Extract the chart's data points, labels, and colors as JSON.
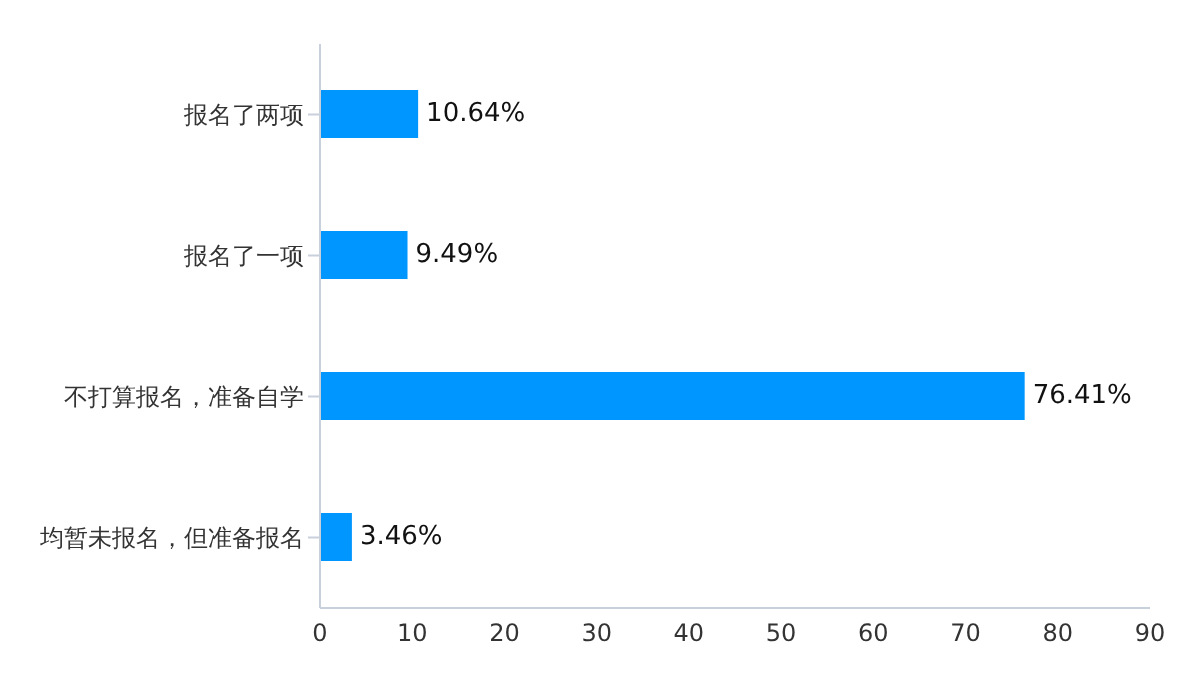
{
  "chart_data": {
    "type": "bar",
    "orientation": "horizontal",
    "categories": [
      "报名了两项",
      "报名了一项",
      "不打算报名，准备自学",
      "均暂未报名，但准备报名"
    ],
    "values": [
      10.64,
      9.49,
      76.41,
      3.46
    ],
    "value_labels": [
      "10.64%",
      "9.49%",
      "76.41%",
      "3.46%"
    ],
    "color": "#0096ff",
    "xlim": [
      0,
      90
    ],
    "xticks": [
      0,
      10,
      20,
      30,
      40,
      50,
      60,
      70,
      80,
      90
    ],
    "grid": false
  }
}
